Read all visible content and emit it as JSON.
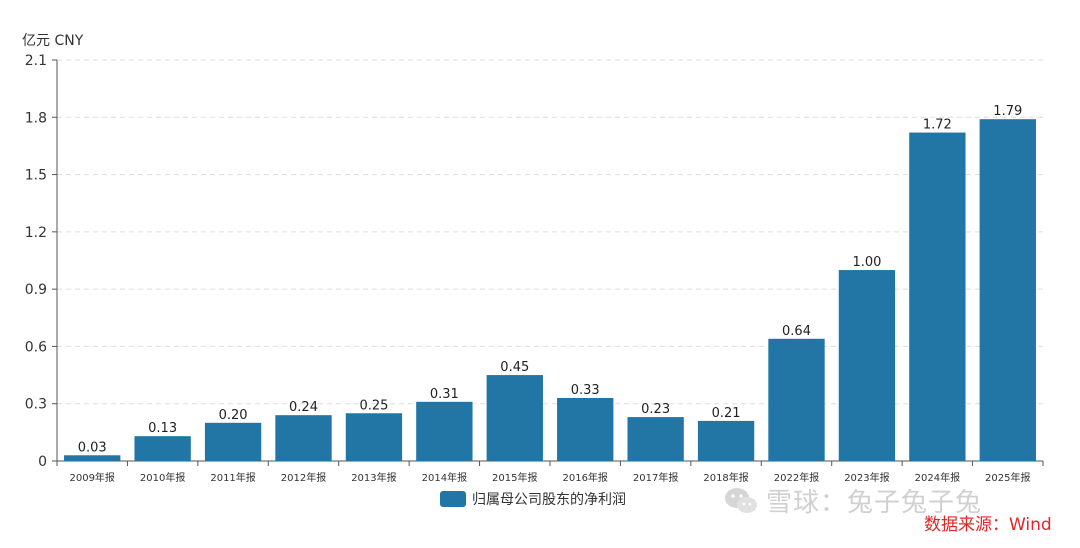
{
  "unit_label": "亿元  CNY",
  "legend": {
    "label": "归属母公司股东的净利润",
    "color": "#2176a5"
  },
  "watermark": {
    "text": "雪球：兔子兔子兔",
    "icon": "wechat-icon"
  },
  "source": "数据来源：Wind",
  "chart_data": {
    "type": "bar",
    "categories": [
      "2009年报",
      "2010年报",
      "2011年报",
      "2012年报",
      "2013年报",
      "2014年报",
      "2015年报",
      "2016年报",
      "2017年报",
      "2018年报",
      "2022年报",
      "2023年报",
      "2024年报",
      "2025年报"
    ],
    "series": [
      {
        "name": "归属母公司股东的净利润",
        "values": [
          0.03,
          0.13,
          0.2,
          0.24,
          0.25,
          0.31,
          0.45,
          0.33,
          0.23,
          0.21,
          0.64,
          1.0,
          1.72,
          1.79
        ],
        "labels": [
          "0.03",
          "0.13",
          "0.20",
          "0.24",
          "0.25",
          "0.31",
          "0.45",
          "0.33",
          "0.23",
          "0.21",
          "0.64",
          "1.00",
          "1.72",
          "1.79"
        ]
      }
    ],
    "ylim": [
      0,
      2.1
    ],
    "yticks": [
      "0",
      "0.3",
      "0.6",
      "0.9",
      "1.2",
      "1.5",
      "1.8",
      "2.1"
    ],
    "ytick_values": [
      0,
      0.3,
      0.6,
      0.9,
      1.2,
      1.5,
      1.8,
      2.1
    ],
    "bar_color": "#2176a5",
    "grid": true,
    "legend_position": "bottom-center"
  }
}
